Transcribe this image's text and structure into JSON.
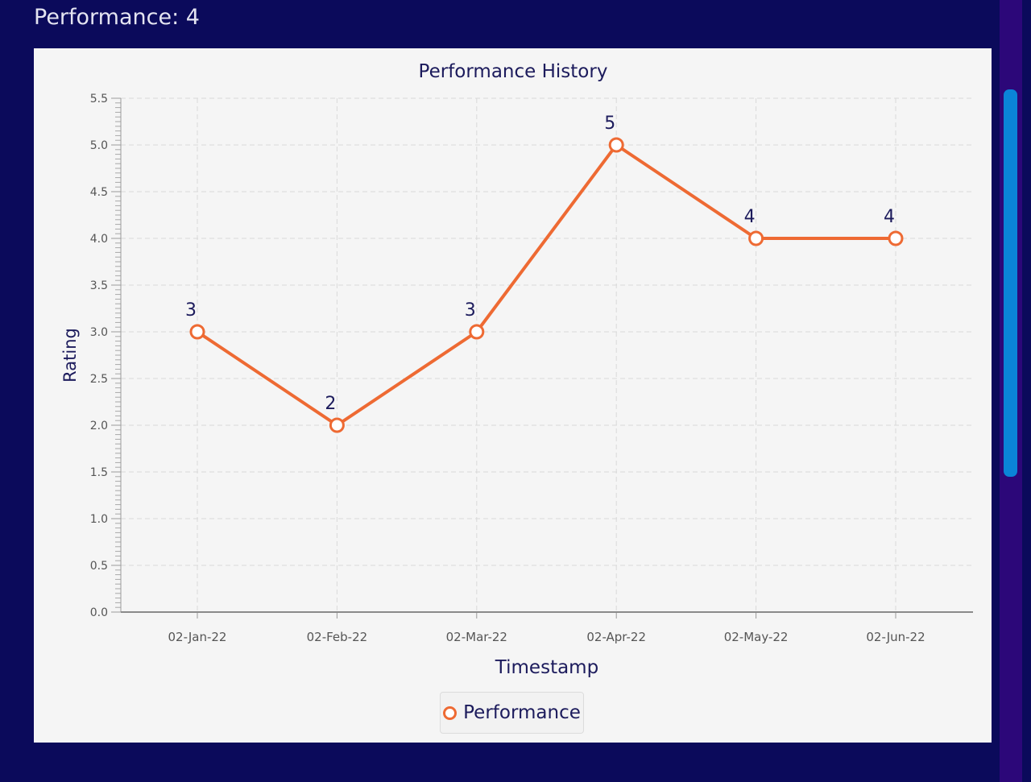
{
  "page": {
    "title_label": "Performance",
    "title_value": "4",
    "title_text": "Performance: 4"
  },
  "chart_data": {
    "type": "line",
    "title": "Performance History",
    "xlabel": "Timestamp",
    "ylabel": "Rating",
    "ylim": [
      0,
      5.5
    ],
    "ytick_step": 0.5,
    "ytick_labels": [
      "0.0",
      "0.5",
      "1.0",
      "1.5",
      "2.0",
      "2.5",
      "3.0",
      "3.5",
      "4.0",
      "4.5",
      "5.0",
      "5.5"
    ],
    "categories": [
      "02-Jan-22",
      "02-Feb-22",
      "02-Mar-22",
      "02-Apr-22",
      "02-May-22",
      "02-Jun-22"
    ],
    "series": [
      {
        "name": "Performance",
        "values": [
          3,
          2,
          3,
          5,
          4,
          4
        ],
        "color": "#ee6a33"
      }
    ],
    "data_labels": [
      "3",
      "2",
      "3",
      "5",
      "4",
      "4"
    ],
    "grid": true,
    "legend_position": "bottom-center"
  },
  "colors": {
    "page_background": "#0b0a5b",
    "card_background": "#f5f5f5",
    "line": "#ee6a33",
    "text_dark": "#1c1b5c",
    "scroll_track": "#2c0779",
    "scroll_thumb": "#0a84d8"
  }
}
